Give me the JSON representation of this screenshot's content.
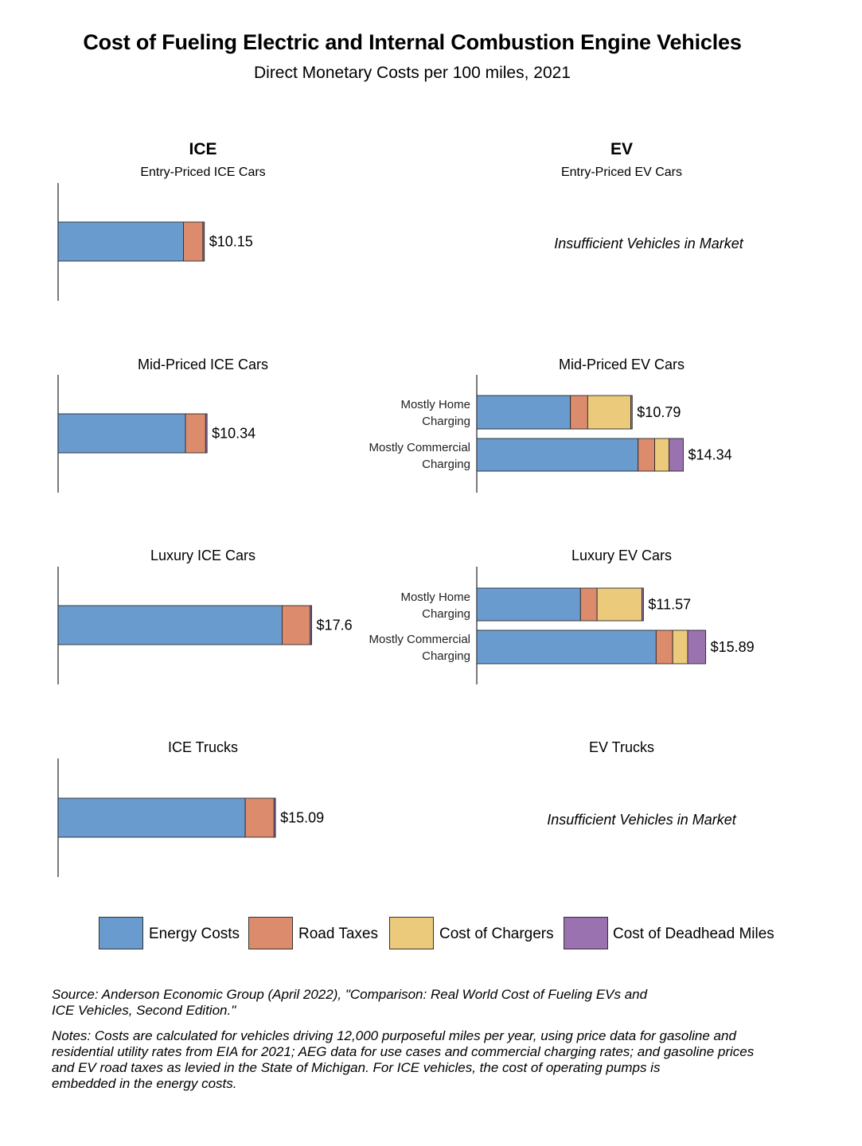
{
  "title": "Cost of Fueling Electric and Internal Combustion Engine Vehicles",
  "subtitle": "Direct Monetary Costs per 100 miles, 2021",
  "columns": {
    "ice": "ICE",
    "ev": "EV"
  },
  "colors": {
    "energy": "#6a9bcf",
    "road": "#dc8c6c",
    "chargers": "#ecca7b",
    "deadhead": "#9b72b0",
    "axis": "#333333",
    "bar_border": "#2a2a2a"
  },
  "panels": {
    "ice_entry": {
      "title": "Entry-Priced ICE Cars"
    },
    "ev_entry": {
      "title": "Entry-Priced EV Cars",
      "message": "Insufficient Vehicles in Market"
    },
    "ice_mid": {
      "title": "Mid-Priced ICE Cars"
    },
    "ev_mid": {
      "title": "Mid-Priced EV Cars"
    },
    "ice_luxury": {
      "title": "Luxury ICE Cars"
    },
    "ev_luxury": {
      "title": "Luxury EV Cars"
    },
    "ice_trucks": {
      "title": "ICE Trucks"
    },
    "ev_trucks": {
      "title": "EV Trucks",
      "message": "Insufficient Vehicles in Market"
    }
  },
  "chart_data": {
    "type": "bar",
    "orientation": "horizontal",
    "stacked": true,
    "unit": "$ per 100 miles",
    "components": [
      "Energy Costs",
      "Road Taxes",
      "Cost of Chargers",
      "Cost of Deadhead Miles"
    ],
    "xlim": [
      0,
      18
    ],
    "bars": [
      {
        "panel": "ice_entry",
        "label": "",
        "energy": 8.7,
        "road": 1.35,
        "chargers": 0,
        "deadhead": 0.1,
        "total_label": "$10.15"
      },
      {
        "panel": "ice_mid",
        "label": "",
        "energy": 8.84,
        "road": 1.4,
        "chargers": 0,
        "deadhead": 0.1,
        "total_label": "$10.34"
      },
      {
        "panel": "ice_luxury",
        "label": "",
        "energy": 15.55,
        "road": 1.95,
        "chargers": 0,
        "deadhead": 0.1,
        "total_label": "$17.6"
      },
      {
        "panel": "ice_trucks",
        "label": "",
        "energy": 12.99,
        "road": 2.0,
        "chargers": 0,
        "deadhead": 0.1,
        "total_label": "$15.09"
      },
      {
        "panel": "ev_mid",
        "label_lines": [
          "Mostly Home",
          "Charging"
        ],
        "energy": 6.5,
        "road": 1.2,
        "chargers": 2.99,
        "deadhead": 0.1,
        "total_label": "$10.79"
      },
      {
        "panel": "ev_mid",
        "label_lines": [
          "Mostly Commercial",
          "Charging"
        ],
        "energy": 11.2,
        "road": 1.15,
        "chargers": 0.99,
        "deadhead": 1.0,
        "total_label": "$14.34"
      },
      {
        "panel": "ev_luxury",
        "label_lines": [
          "Mostly Home",
          "Charging"
        ],
        "energy": 7.2,
        "road": 1.15,
        "chargers": 3.12,
        "deadhead": 0.1,
        "total_label": "$11.57"
      },
      {
        "panel": "ev_luxury",
        "label_lines": [
          "Mostly Commercial",
          "Charging"
        ],
        "energy": 12.45,
        "road": 1.15,
        "chargers": 1.04,
        "deadhead": 1.25,
        "total_label": "$15.89"
      }
    ]
  },
  "legend": {
    "energy": "Energy Costs",
    "road": "Road Taxes",
    "chargers": "Cost of Chargers",
    "deadhead": "Cost of Deadhead Miles"
  },
  "source": {
    "line1": "Source: Anderson Economic Group (April 2022), \"Comparison: Real World Cost of Fueling EVs and",
    "line2": "ICE Vehicles, Second Edition.\""
  },
  "notes": {
    "line1": "Notes: Costs are calculated for vehicles driving 12,000 purposeful miles per year, using price data for gasoline and",
    "line2": "residential utility rates from EIA for 2021; AEG data for use cases and commercial charging rates; and gasoline prices",
    "line3": "and EV road taxes as levied in the State of Michigan. For ICE vehicles, the cost of operating pumps is",
    "line4": "embedded in the energy costs."
  }
}
